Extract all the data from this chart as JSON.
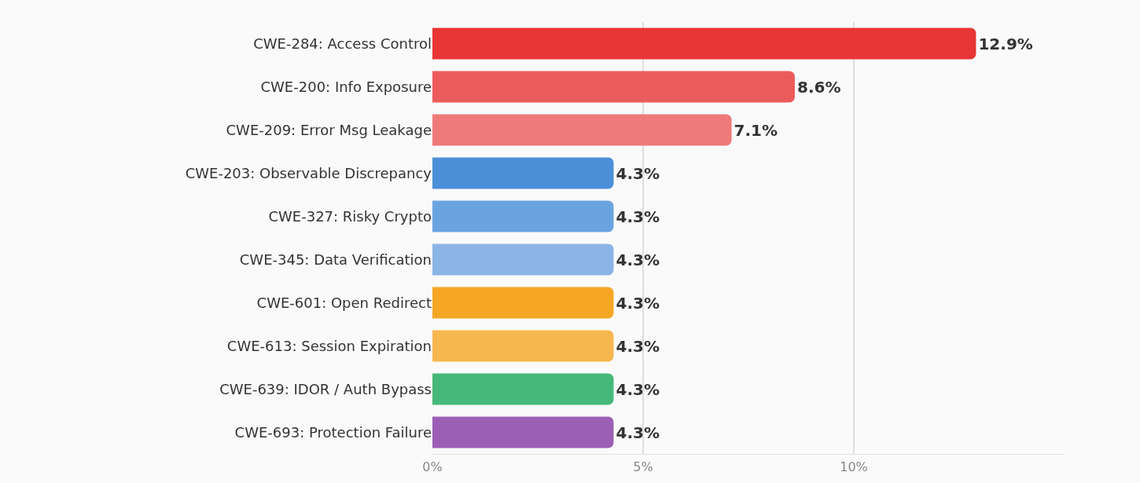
{
  "chart_data": {
    "type": "bar",
    "orientation": "horizontal",
    "categories": [
      "CWE-284: Access Control",
      "CWE-200: Info Exposure",
      "CWE-209: Error Msg Leakage",
      "CWE-203: Observable Discrepancy",
      "CWE-327: Risky Crypto",
      "CWE-345: Data Verification",
      "CWE-601: Open Redirect",
      "CWE-613: Session Expiration",
      "CWE-639: IDOR / Auth Bypass",
      "CWE-693: Protection Failure"
    ],
    "values": [
      12.9,
      8.6,
      7.1,
      4.3,
      4.3,
      4.3,
      4.3,
      4.3,
      4.3,
      4.3
    ],
    "value_labels": [
      "12.9%",
      "8.6%",
      "7.1%",
      "4.3%",
      "4.3%",
      "4.3%",
      "4.3%",
      "4.3%",
      "4.3%",
      "4.3%"
    ],
    "colors": [
      "#e83535",
      "#ec5b5b",
      "#ef7a7a",
      "#4a8fd8",
      "#6aa4e0",
      "#8ab4e5",
      "#f5a623",
      "#f7b74f",
      "#45b879",
      "#9b5fb5"
    ],
    "xticks": [
      {
        "value": 0,
        "label": "0%"
      },
      {
        "value": 5,
        "label": "5%"
      },
      {
        "value": 10,
        "label": "10%"
      }
    ],
    "xlim": [
      0,
      15
    ],
    "grid": "x"
  }
}
